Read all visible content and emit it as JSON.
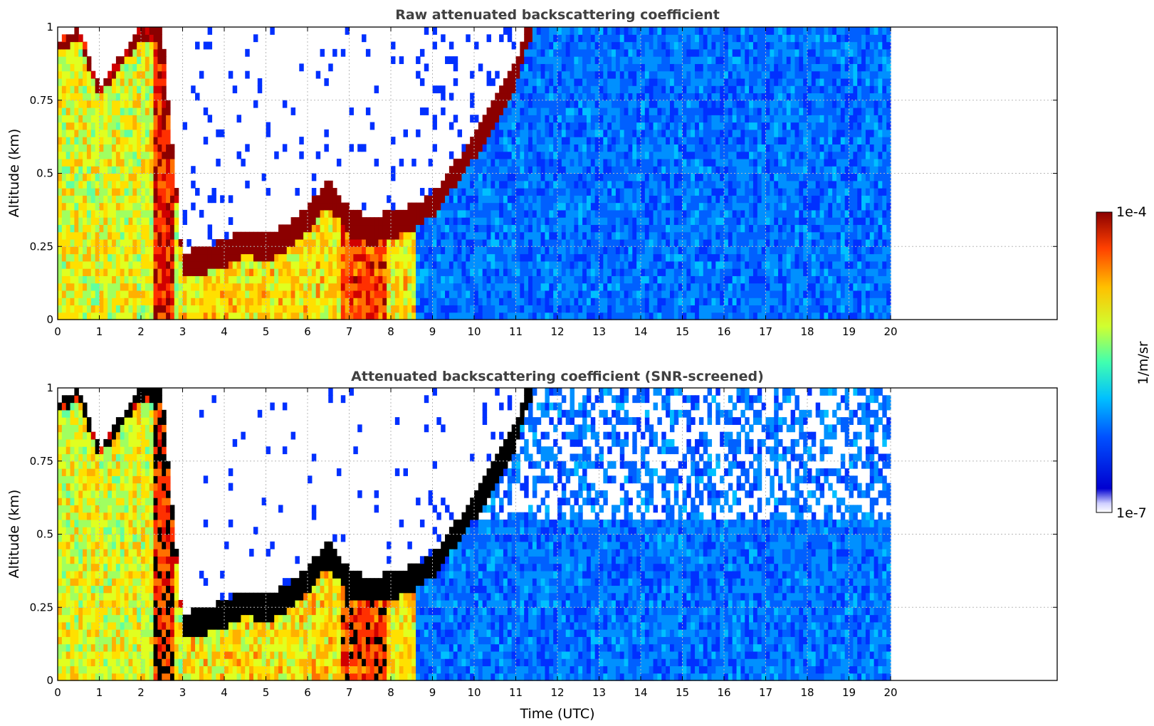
{
  "chart_data": [
    {
      "type": "heatmap",
      "title": "Raw attenuated backscattering coefficient",
      "xlabel": "",
      "ylabel": "Altitude (km)",
      "xlim": [
        0,
        24
      ],
      "ylim": [
        0,
        1
      ],
      "xticks": [
        "0",
        "1",
        "2",
        "3",
        "4",
        "5",
        "6",
        "7",
        "8",
        "9",
        "10",
        "11",
        "12",
        "13",
        "14",
        "15",
        "16",
        "17",
        "18",
        "19",
        "20"
      ],
      "yticks": [
        "0",
        "0.25",
        "0.5",
        "0.75",
        "1"
      ],
      "grid": true,
      "data_time_range": [
        0,
        20
      ],
      "screened": false,
      "boundary_layer_top_km": [
        [
          0,
          0.95
        ],
        [
          0.5,
          1.0
        ],
        [
          1.0,
          0.8
        ],
        [
          1.5,
          0.9
        ],
        [
          2.0,
          1.0
        ],
        [
          2.5,
          1.0
        ],
        [
          3.0,
          0.2
        ],
        [
          3.5,
          0.22
        ],
        [
          4.0,
          0.24
        ],
        [
          4.5,
          0.28
        ],
        [
          5.0,
          0.26
        ],
        [
          5.5,
          0.3
        ],
        [
          6.0,
          0.36
        ],
        [
          6.5,
          0.45
        ],
        [
          7.0,
          0.35
        ],
        [
          7.5,
          0.32
        ],
        [
          8.0,
          0.34
        ],
        [
          8.5,
          0.36
        ],
        [
          9.0,
          0.4
        ],
        [
          9.5,
          0.5
        ],
        [
          10.0,
          0.6
        ],
        [
          10.5,
          0.72
        ],
        [
          11.0,
          0.85
        ],
        [
          11.3,
          1.0
        ]
      ]
    },
    {
      "type": "heatmap",
      "title": "Attenuated backscattering coefficient (SNR-screened)",
      "xlabel": "Time (UTC)",
      "ylabel": "Altitude (km)",
      "xlim": [
        0,
        24
      ],
      "ylim": [
        0,
        1
      ],
      "xticks": [
        "0",
        "1",
        "2",
        "3",
        "4",
        "5",
        "6",
        "7",
        "8",
        "9",
        "10",
        "11",
        "12",
        "13",
        "14",
        "15",
        "16",
        "17",
        "18",
        "19",
        "20"
      ],
      "yticks": [
        "0",
        "0.25",
        "0.5",
        "0.75",
        "1"
      ],
      "grid": true,
      "data_time_range": [
        0,
        20
      ],
      "screened": true,
      "boundary_layer_top_km": [
        [
          0,
          0.95
        ],
        [
          0.5,
          1.0
        ],
        [
          1.0,
          0.8
        ],
        [
          1.5,
          0.9
        ],
        [
          2.0,
          1.0
        ],
        [
          2.5,
          1.0
        ],
        [
          3.0,
          0.2
        ],
        [
          3.5,
          0.22
        ],
        [
          4.0,
          0.24
        ],
        [
          4.5,
          0.28
        ],
        [
          5.0,
          0.26
        ],
        [
          5.5,
          0.3
        ],
        [
          6.0,
          0.36
        ],
        [
          6.5,
          0.45
        ],
        [
          7.0,
          0.35
        ],
        [
          7.5,
          0.32
        ],
        [
          8.0,
          0.34
        ],
        [
          8.5,
          0.36
        ],
        [
          9.0,
          0.4
        ],
        [
          9.5,
          0.5
        ],
        [
          10.0,
          0.6
        ],
        [
          10.5,
          0.72
        ],
        [
          11.0,
          0.85
        ],
        [
          11.3,
          1.0
        ]
      ]
    }
  ],
  "colorbar": {
    "label": "1/m/sr",
    "max_label": "1e-4",
    "min_label": "1e-7",
    "colormap": "jet",
    "colors": [
      "#ffffff",
      "#0000c8",
      "#0050ff",
      "#00c8ff",
      "#40ffb0",
      "#c8ff30",
      "#ffd000",
      "#ff5000",
      "#8b0000"
    ]
  }
}
